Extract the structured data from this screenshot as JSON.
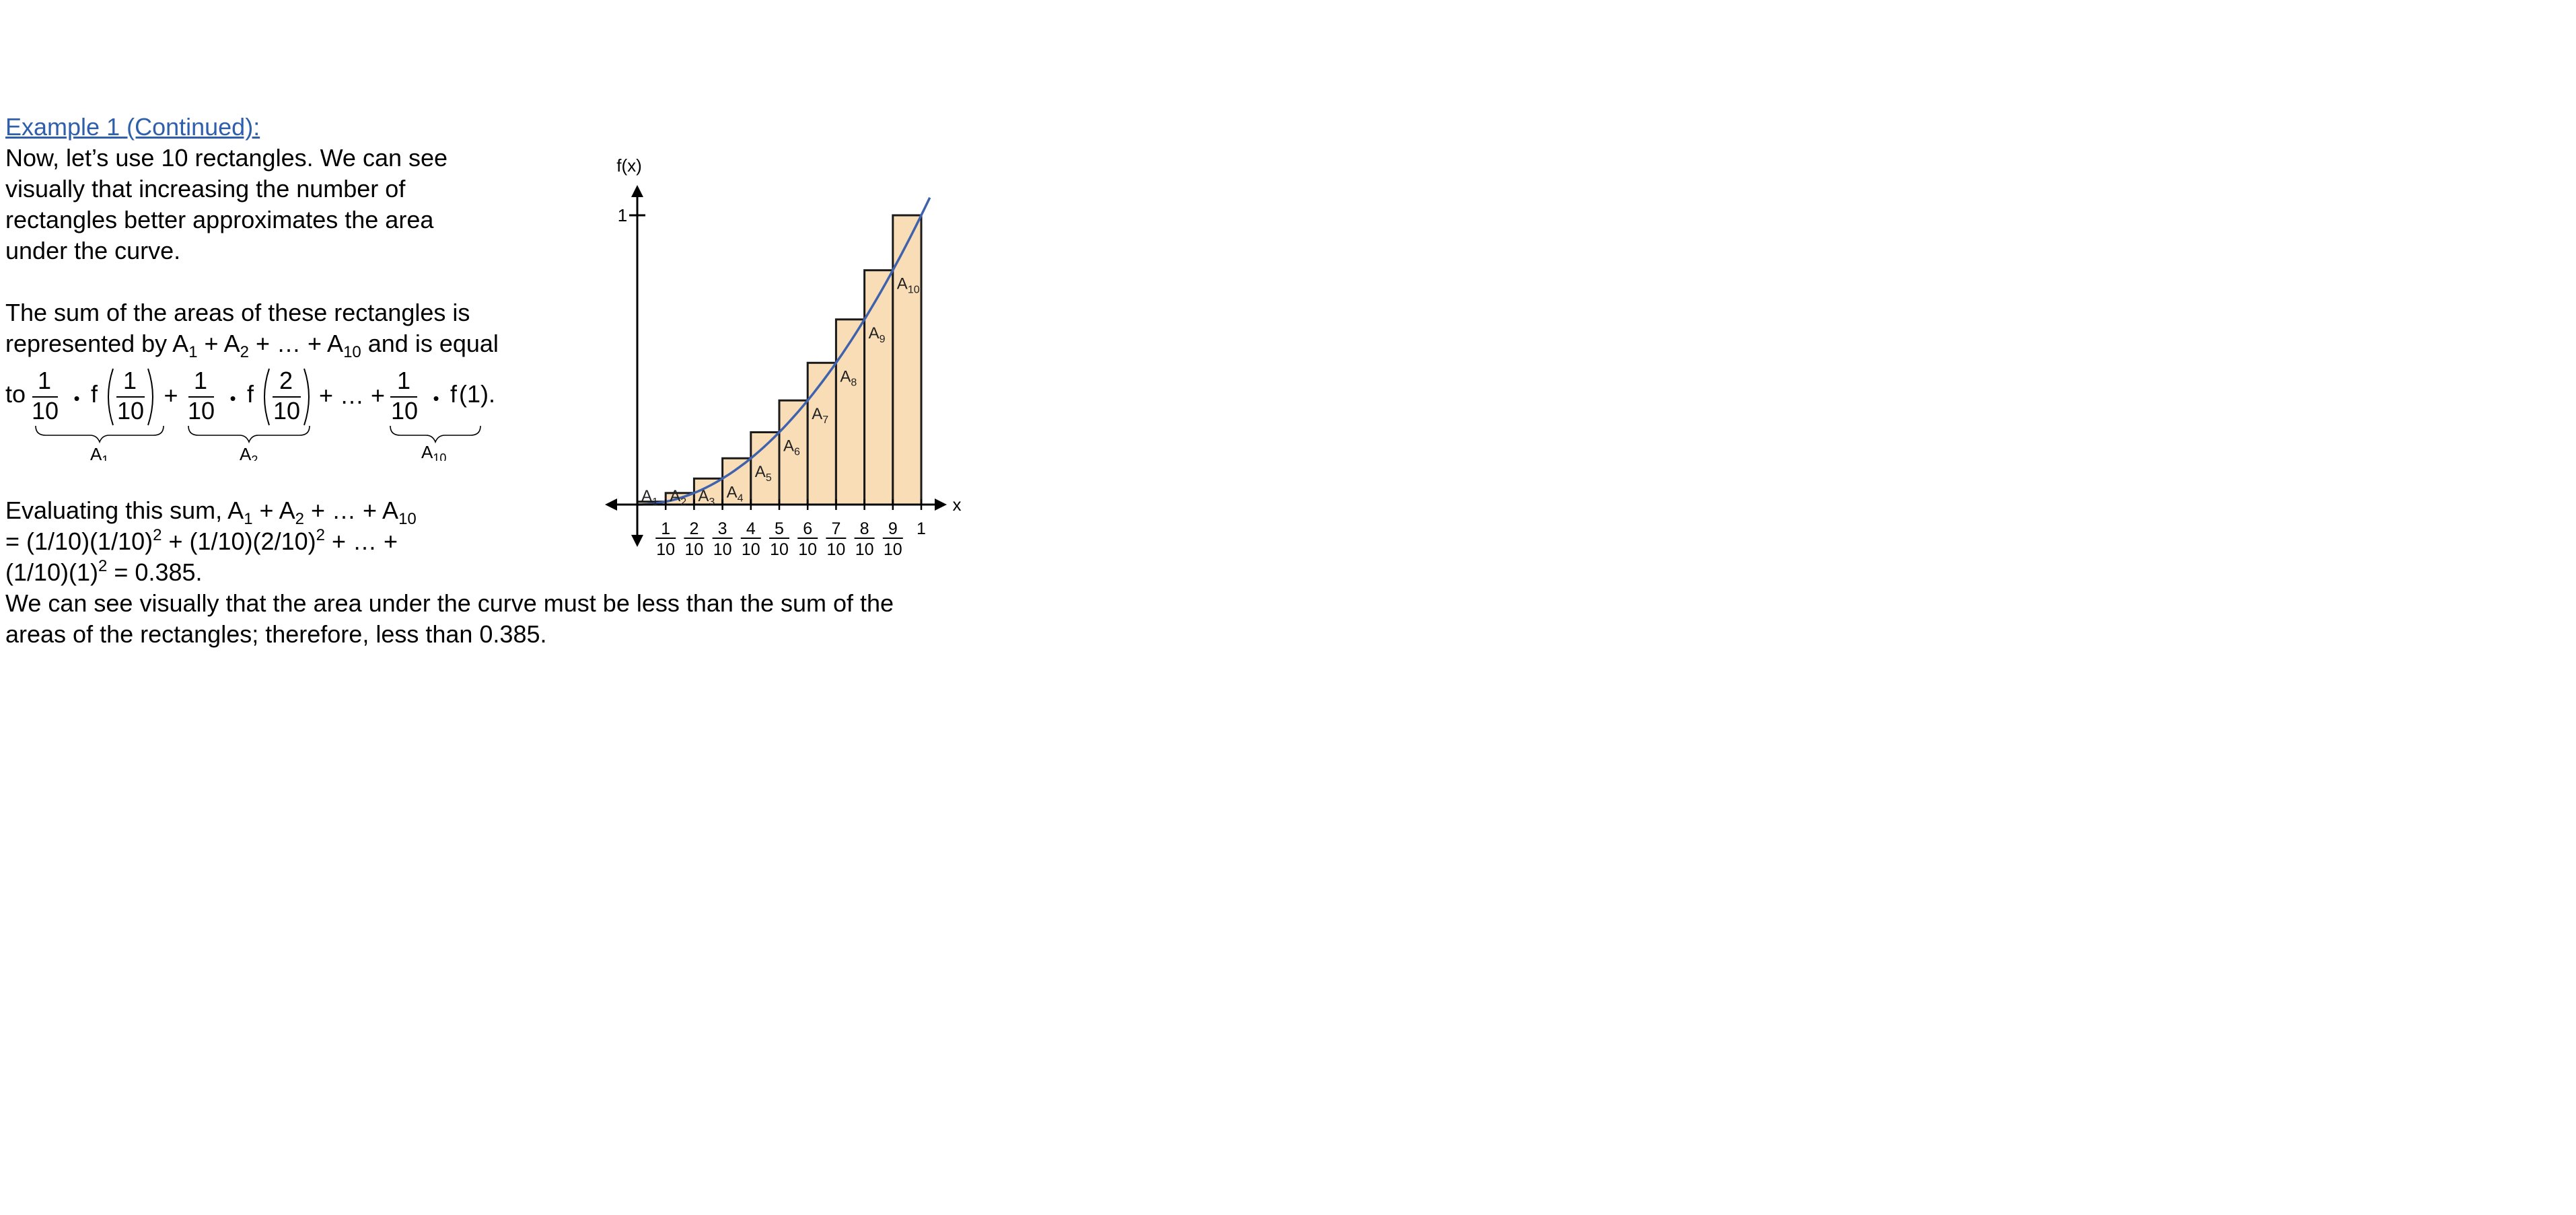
{
  "colors": {
    "heading": "#2f5faa",
    "rect_fill": "#f8ddb7",
    "curve": "#3f62ad",
    "text": "#000000"
  },
  "heading": "Example 1 (Continued):",
  "intro_lines": [
    "Now, let’s use 10 rectangles.  We can see",
    "visually that increasing the number of",
    "rectangles better approximates the area",
    "under the curve."
  ],
  "sum_text": {
    "line1": "The sum of the areas of these rectangles is",
    "line2_prefix": "represented by A",
    "sub1": "1",
    "plus1": " + A",
    "sub2": "2",
    "middle": " + … + A",
    "sub10": "10",
    "line2_suffix": "  and is equal"
  },
  "formula": {
    "to": "to",
    "one": "1",
    "ten": "10",
    "two": "2",
    "bullet": "•",
    "f": "f",
    "plus": "+",
    "ellipsis": "+ … +",
    "f_one": "(1).",
    "brace_label_1": "A",
    "brace_label_1_sub": "1",
    "brace_label_2": "A",
    "brace_label_2_sub": "2",
    "brace_label_10": "A",
    "brace_label_10_sub": "10"
  },
  "evaluation": {
    "line1_prefix": "Evaluating this sum, A",
    "line1_sub1": "1",
    "line1_plus": " + A",
    "line1_sub2": "2",
    "line1_mid": " + … + A",
    "line1_sub10": "10",
    "line2_a": "= (1/10)(1/10)",
    "line2_exp1": "2",
    "line2_b": " + (1/10)(2/10)",
    "line2_exp2": "2",
    "line2_c": " + … +",
    "line3_a": "(1/10)(1)",
    "line3_exp": "2",
    "line3_b": " = 0.385."
  },
  "conclusion_lines": [
    "We can see visually that the area under the curve must be less than the sum of the",
    "areas of the rectangles; therefore, less than 0.385."
  ],
  "chart_data": {
    "type": "bar",
    "title": "",
    "xlabel": "x",
    "ylabel": "f(x)",
    "function": "f(x) = x^2",
    "xlim": [
      0,
      1
    ],
    "ylim": [
      0,
      1
    ],
    "y_tick_label": "1",
    "x_tick_numerators": [
      "1",
      "2",
      "3",
      "4",
      "5",
      "6",
      "7",
      "8",
      "9"
    ],
    "x_tick_denominator": "10",
    "x_tick_last": "1",
    "rect_left_edges": [
      0.0,
      0.1,
      0.2,
      0.3,
      0.4,
      0.5,
      0.6,
      0.7,
      0.8,
      0.9
    ],
    "rect_width": 0.1,
    "rect_heights": [
      0.01,
      0.04,
      0.09,
      0.16,
      0.25,
      0.36,
      0.49,
      0.64,
      0.81,
      1.0
    ],
    "rect_labels": [
      "A",
      "A",
      "A",
      "A",
      "A",
      "A",
      "A",
      "A",
      "A",
      "A"
    ],
    "rect_label_subs": [
      "1",
      "2",
      "3",
      "4",
      "5",
      "6",
      "7",
      "8",
      "9",
      "10"
    ],
    "curve_domain": [
      0,
      1.03
    ]
  }
}
